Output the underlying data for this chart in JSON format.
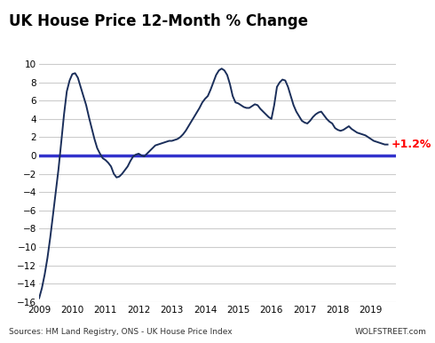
{
  "title": "UK House Price 12-Month % Change",
  "source_text": "Sources: HM Land Registry, ONS - UK House Price Index",
  "wolfstreet_text": "WOLFSTREET.com",
  "annotation": "+1.2%",
  "line_color": "#1a2e5a",
  "zero_line_color": "#3333cc",
  "annotation_color": "#ff0000",
  "bg_color": "#ffffff",
  "grid_color": "#cccccc",
  "ylim": [
    -16,
    11
  ],
  "yticks": [
    -16,
    -14,
    -12,
    -10,
    -8,
    -6,
    -4,
    -2,
    0,
    2,
    4,
    6,
    8,
    10
  ],
  "xlim": [
    2009,
    2019.75
  ],
  "xtick_years": [
    2009,
    2010,
    2011,
    2012,
    2013,
    2014,
    2015,
    2016,
    2017,
    2018,
    2019
  ],
  "data": {
    "dates": [
      2009.0,
      2009.083,
      2009.167,
      2009.25,
      2009.333,
      2009.417,
      2009.5,
      2009.583,
      2009.667,
      2009.75,
      2009.833,
      2009.917,
      2010.0,
      2010.083,
      2010.167,
      2010.25,
      2010.333,
      2010.417,
      2010.5,
      2010.583,
      2010.667,
      2010.75,
      2010.833,
      2010.917,
      2011.0,
      2011.083,
      2011.167,
      2011.25,
      2011.333,
      2011.417,
      2011.5,
      2011.583,
      2011.667,
      2011.75,
      2011.833,
      2011.917,
      2012.0,
      2012.083,
      2012.167,
      2012.25,
      2012.333,
      2012.417,
      2012.5,
      2012.583,
      2012.667,
      2012.75,
      2012.833,
      2012.917,
      2013.0,
      2013.083,
      2013.167,
      2013.25,
      2013.333,
      2013.417,
      2013.5,
      2013.583,
      2013.667,
      2013.75,
      2013.833,
      2013.917,
      2014.0,
      2014.083,
      2014.167,
      2014.25,
      2014.333,
      2014.417,
      2014.5,
      2014.583,
      2014.667,
      2014.75,
      2014.833,
      2014.917,
      2015.0,
      2015.083,
      2015.167,
      2015.25,
      2015.333,
      2015.417,
      2015.5,
      2015.583,
      2015.667,
      2015.75,
      2015.833,
      2015.917,
      2016.0,
      2016.083,
      2016.167,
      2016.25,
      2016.333,
      2016.417,
      2016.5,
      2016.583,
      2016.667,
      2016.75,
      2016.833,
      2016.917,
      2017.0,
      2017.083,
      2017.167,
      2017.25,
      2017.333,
      2017.417,
      2017.5,
      2017.583,
      2017.667,
      2017.75,
      2017.833,
      2017.917,
      2018.0,
      2018.083,
      2018.167,
      2018.25,
      2018.333,
      2018.417,
      2018.5,
      2018.583,
      2018.667,
      2018.75,
      2018.833,
      2018.917,
      2019.0,
      2019.083,
      2019.167,
      2019.25,
      2019.333,
      2019.417,
      2019.5
    ],
    "values": [
      -15.6,
      -14.5,
      -13.0,
      -11.2,
      -9.0,
      -6.5,
      -4.0,
      -1.5,
      1.5,
      4.5,
      7.0,
      8.2,
      8.9,
      9.0,
      8.5,
      7.5,
      6.5,
      5.5,
      4.2,
      3.0,
      1.8,
      0.8,
      0.2,
      -0.3,
      -0.5,
      -0.8,
      -1.2,
      -2.0,
      -2.4,
      -2.3,
      -2.0,
      -1.6,
      -1.2,
      -0.6,
      -0.1,
      0.1,
      0.2,
      0.0,
      -0.1,
      0.2,
      0.5,
      0.8,
      1.1,
      1.2,
      1.3,
      1.4,
      1.5,
      1.6,
      1.6,
      1.7,
      1.8,
      2.0,
      2.3,
      2.7,
      3.2,
      3.7,
      4.2,
      4.7,
      5.2,
      5.8,
      6.2,
      6.5,
      7.2,
      8.0,
      8.8,
      9.3,
      9.5,
      9.3,
      8.8,
      7.8,
      6.5,
      5.8,
      5.7,
      5.5,
      5.3,
      5.2,
      5.2,
      5.4,
      5.6,
      5.5,
      5.1,
      4.8,
      4.5,
      4.2,
      4.0,
      5.5,
      7.5,
      8.0,
      8.3,
      8.2,
      7.5,
      6.5,
      5.5,
      4.8,
      4.3,
      3.8,
      3.6,
      3.5,
      3.8,
      4.2,
      4.5,
      4.7,
      4.8,
      4.4,
      4.0,
      3.7,
      3.5,
      3.0,
      2.8,
      2.7,
      2.8,
      3.0,
      3.2,
      2.9,
      2.7,
      2.5,
      2.4,
      2.3,
      2.2,
      2.0,
      1.8,
      1.6,
      1.5,
      1.4,
      1.3,
      1.2,
      1.2
    ]
  }
}
